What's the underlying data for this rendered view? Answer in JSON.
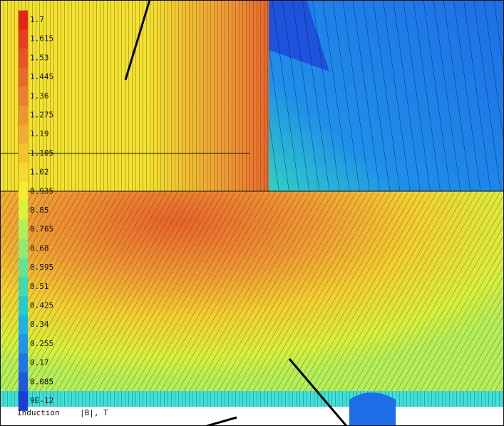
{
  "chart_data": {
    "type": "contour",
    "colorbar_label": "Induction",
    "quantity": "|B|, T",
    "ticks": [
      1.7,
      1.615,
      1.53,
      1.445,
      1.36,
      1.275,
      1.19,
      1.105,
      1.02,
      0.935,
      0.85,
      0.765,
      0.68,
      0.595,
      0.51,
      0.425,
      0.34,
      0.255,
      0.17,
      0.085,
      {
        "value": 9e-12,
        "label": "9E-12"
      }
    ],
    "colors": [
      "#e3231c",
      "#e43d1f",
      "#e65426",
      "#e8692b",
      "#eb7f30",
      "#ee9533",
      "#f1ab33",
      "#f4c231",
      "#f6d92e",
      "#f2ee2d",
      "#d6f13e",
      "#b4ee5a",
      "#8ee977",
      "#66e294",
      "#3fdab2",
      "#26cbcf",
      "#1fb2e3",
      "#1f94ea",
      "#1e76e8",
      "#1d58e0",
      "#1b3ad6"
    ]
  }
}
